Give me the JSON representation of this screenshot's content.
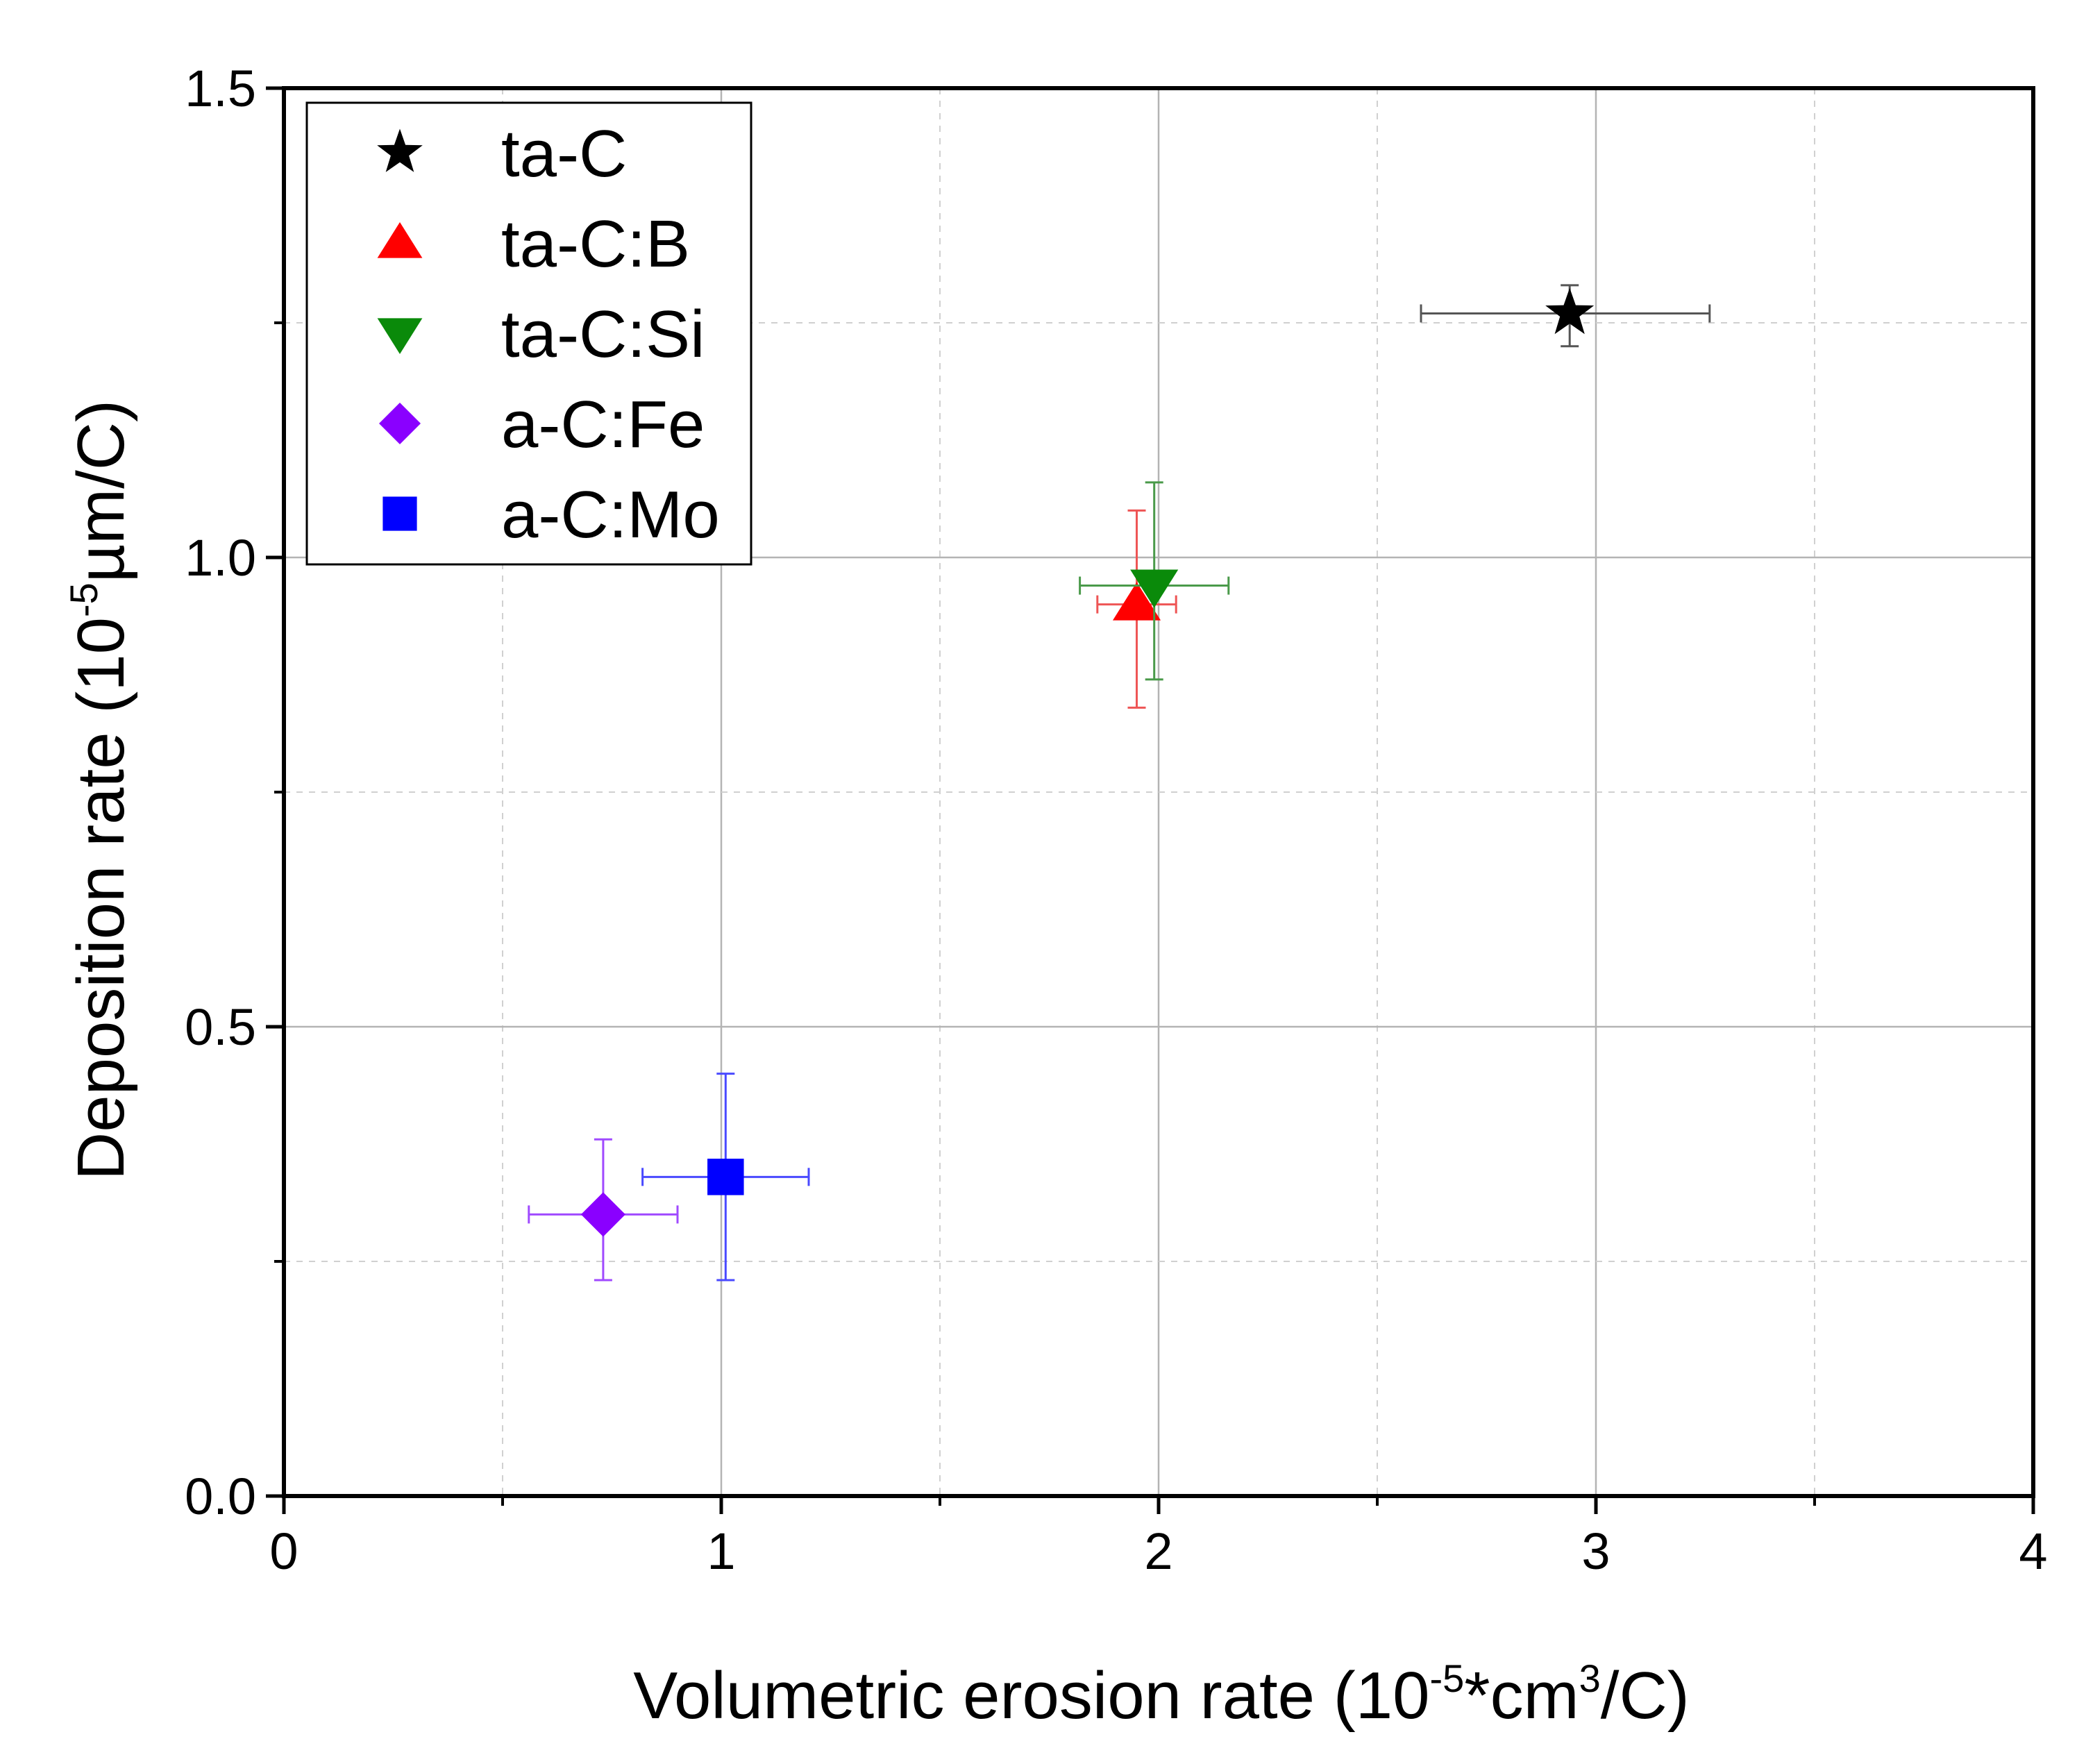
{
  "chart_data": {
    "type": "scatter",
    "title": "",
    "xlabel": {
      "prefix": "Volumetric erosion rate (10",
      "sup1": "-5",
      "middle": "*cm",
      "sup2": "3",
      "suffix": "/C)"
    },
    "ylabel": {
      "prefix": "Deposition rate (10",
      "sup1": "-5",
      "suffix": "µm/C)"
    },
    "xlim": [
      0,
      4
    ],
    "ylim": [
      0,
      1.5
    ],
    "x_ticks": [
      {
        "value": 0,
        "label": "0"
      },
      {
        "value": 1,
        "label": "1"
      },
      {
        "value": 2,
        "label": "2"
      },
      {
        "value": 3,
        "label": "3"
      },
      {
        "value": 4,
        "label": "4"
      }
    ],
    "x_minor_ticks": [
      0.5,
      1.5,
      2.5,
      3.5
    ],
    "y_ticks": [
      {
        "value": 0,
        "label": "0.0"
      },
      {
        "value": 0.5,
        "label": "0.5"
      },
      {
        "value": 1.0,
        "label": "1.0"
      },
      {
        "value": 1.5,
        "label": "1.5"
      }
    ],
    "y_minor_ticks": [
      0.25,
      0.75,
      1.25
    ],
    "grid": true,
    "legend_position": "top-left",
    "series": [
      {
        "name": "ta-C",
        "marker": "star",
        "color": "#000000",
        "errcolor": "#555555",
        "x": 2.94,
        "y": 1.26,
        "xerr": [
          2.6,
          3.26
        ],
        "yerr": [
          1.225,
          1.29
        ]
      },
      {
        "name": "ta-C:B",
        "marker": "triangle-up",
        "color": "#ff0000",
        "errcolor": "#ee5555",
        "x": 1.95,
        "y": 0.95,
        "xerr": [
          1.86,
          2.04
        ],
        "yerr": [
          0.84,
          1.05
        ]
      },
      {
        "name": "ta-C:Si",
        "marker": "triangle-down",
        "color": "#0a8a0a",
        "errcolor": "#4a9a4a",
        "x": 1.99,
        "y": 0.97,
        "xerr": [
          1.82,
          2.16
        ],
        "yerr": [
          0.87,
          1.08
        ]
      },
      {
        "name": "a-C:Fe",
        "marker": "diamond",
        "color": "#8a00ff",
        "errcolor": "#a04aff",
        "x": 0.73,
        "y": 0.3,
        "xerr": [
          0.56,
          0.9
        ],
        "yerr": [
          0.23,
          0.38
        ]
      },
      {
        "name": "a-C:Mo",
        "marker": "square",
        "color": "#0000ff",
        "errcolor": "#4a4aff",
        "x": 1.01,
        "y": 0.34,
        "xerr": [
          0.82,
          1.2
        ],
        "yerr": [
          0.23,
          0.45
        ]
      }
    ]
  }
}
